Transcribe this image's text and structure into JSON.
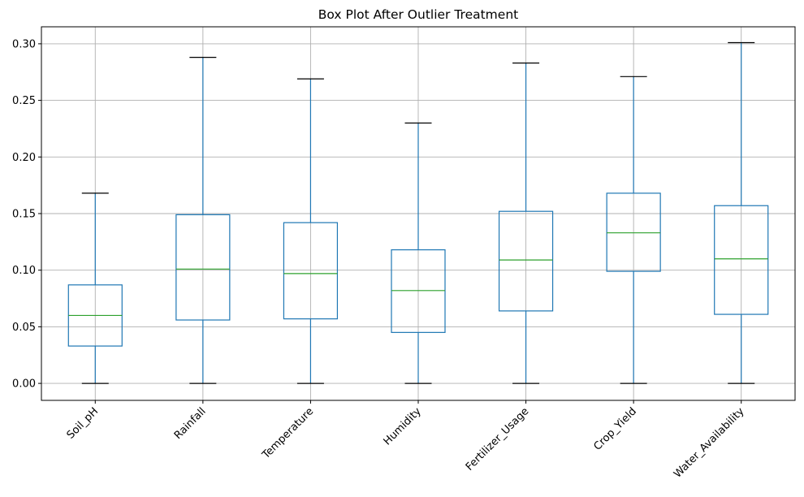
{
  "chart_data": {
    "type": "boxplot",
    "title": "Box Plot After Outlier Treatment",
    "xlabel": "",
    "ylabel": "",
    "ylim": [
      -0.015,
      0.315
    ],
    "yticks": [
      0.0,
      0.05,
      0.1,
      0.15,
      0.2,
      0.25,
      0.3
    ],
    "ytick_labels": [
      "0.00",
      "0.05",
      "0.10",
      "0.15",
      "0.20",
      "0.25",
      "0.30"
    ],
    "grid": true,
    "x_tick_rotation": 45,
    "colors": {
      "box": "#1f77b4",
      "median": "#2ca02c",
      "cap": "#000000",
      "grid": "#b0b0b0"
    },
    "categories": [
      "Soil_pH",
      "Rainfall",
      "Temperature",
      "Humidity",
      "Fertilizer_Usage",
      "Crop_Yield",
      "Water_Availability"
    ],
    "boxes": [
      {
        "name": "Soil_pH",
        "whislo": 0.0,
        "q1": 0.033,
        "med": 0.06,
        "q3": 0.087,
        "whishi": 0.168
      },
      {
        "name": "Rainfall",
        "whislo": 0.0,
        "q1": 0.056,
        "med": 0.101,
        "q3": 0.149,
        "whishi": 0.288
      },
      {
        "name": "Temperature",
        "whislo": 0.0,
        "q1": 0.057,
        "med": 0.097,
        "q3": 0.142,
        "whishi": 0.269
      },
      {
        "name": "Humidity",
        "whislo": 0.0,
        "q1": 0.045,
        "med": 0.082,
        "q3": 0.118,
        "whishi": 0.23
      },
      {
        "name": "Fertilizer_Usage",
        "whislo": 0.0,
        "q1": 0.064,
        "med": 0.109,
        "q3": 0.152,
        "whishi": 0.283
      },
      {
        "name": "Crop_Yield",
        "whislo": 0.0,
        "q1": 0.099,
        "med": 0.133,
        "q3": 0.168,
        "whishi": 0.271
      },
      {
        "name": "Water_Availability",
        "whislo": 0.0,
        "q1": 0.061,
        "med": 0.11,
        "q3": 0.157,
        "whishi": 0.301
      }
    ]
  }
}
